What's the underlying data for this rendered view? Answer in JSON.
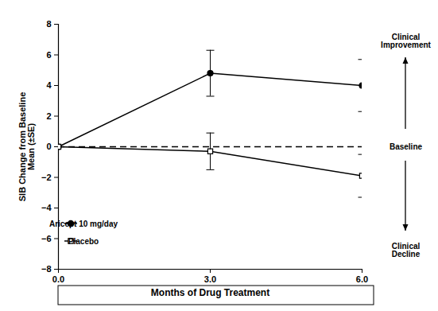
{
  "chart_data": {
    "type": "line",
    "x_label": "Months of Drug Treatment",
    "y_label": "SIB Change from Baseline\nMean (±SE)",
    "x": [
      0,
      3,
      6
    ],
    "xlim": [
      0,
      6
    ],
    "xticks": [
      0,
      3,
      6
    ],
    "ylim": [
      -8,
      8
    ],
    "yticks": [
      -8,
      -6,
      -4,
      -2,
      0,
      2,
      4,
      6,
      8
    ],
    "series": [
      {
        "name": "Aricept 10 mg/day",
        "color": "#000000",
        "marker": "circle",
        "values": [
          0,
          4.8,
          4.0
        ],
        "se": [
          0,
          1.5,
          1.7
        ]
      },
      {
        "name": "Placebo",
        "color": "#000000",
        "marker": "open-square",
        "values": [
          0,
          -0.3,
          -1.9
        ],
        "se": [
          0,
          1.2,
          1.4
        ]
      }
    ],
    "baseline": {
      "value": 0,
      "label": "Baseline",
      "line_style": "dashed"
    },
    "annotations": [
      "Clinical Improvement",
      "Clinical Decline"
    ],
    "legend": "bottom-left",
    "grid": false
  }
}
